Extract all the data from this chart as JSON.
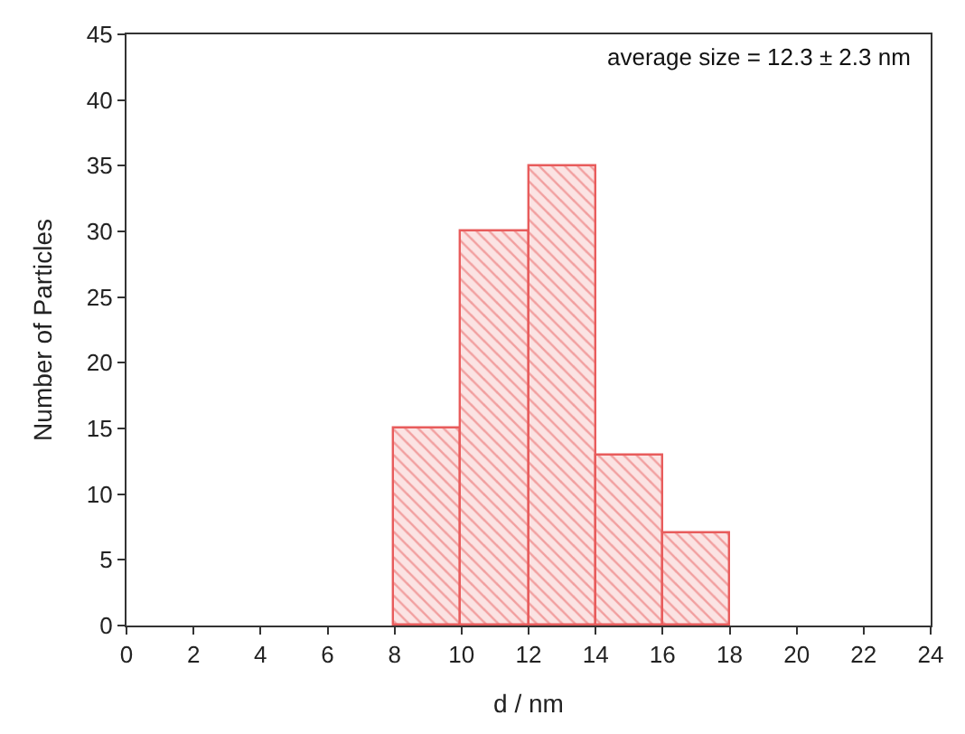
{
  "chart_data": {
    "type": "histogram",
    "xlabel": "d / nm",
    "ylabel": "Number of Particles",
    "bins": [
      8,
      10,
      12,
      14,
      16,
      18
    ],
    "values": [
      15,
      30,
      35,
      13,
      7
    ],
    "color": "#e85c5c",
    "xlim": [
      0,
      24
    ],
    "xticks": [
      0,
      2,
      4,
      6,
      8,
      10,
      12,
      14,
      16,
      18,
      20,
      22,
      24
    ],
    "ylim": [
      0,
      45
    ],
    "yticks": [
      0,
      5,
      10,
      15,
      20,
      25,
      30,
      35,
      40,
      45
    ],
    "annotations": [
      "average size = 12.3 ± 2.3 nm"
    ]
  }
}
